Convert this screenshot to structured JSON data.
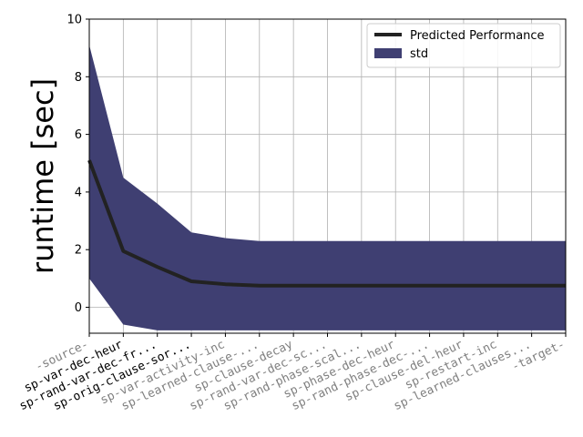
{
  "chart_data": {
    "type": "line",
    "title": "",
    "xlabel": "",
    "ylabel": "runtime [sec]",
    "ylim": [
      -0.9,
      10
    ],
    "yticks": [
      0,
      2,
      4,
      6,
      8,
      10
    ],
    "grid": true,
    "legend_placement": "top-right",
    "categories": [
      "-source-",
      "sp-var-dec-heur",
      "sp-rand-var-dec-fr...",
      "sp-orig-clause-sor...",
      "sp-var-activity-inc",
      "sp-learned-clause-...",
      "sp-clause-decay",
      "sp-rand-var-dec-sc...",
      "sp-rand-phase-scal...",
      "sp-phase-dec-heur",
      "sp-rand-phase-dec-...",
      "sp-clause-del-heur",
      "sp-restart-inc",
      "sp-learned-clauses...",
      "-target-"
    ],
    "tick_colors": [
      "#808080",
      "#000000",
      "#000000",
      "#000000",
      "#808080",
      "#808080",
      "#808080",
      "#808080",
      "#808080",
      "#808080",
      "#808080",
      "#808080",
      "#808080",
      "#808080",
      "#808080"
    ],
    "series": [
      {
        "name": "Predicted Performance",
        "kind": "line",
        "color": "#222222",
        "values": [
          5.1,
          1.95,
          1.4,
          0.9,
          0.8,
          0.75,
          0.75,
          0.75,
          0.75,
          0.75,
          0.75,
          0.75,
          0.75,
          0.75,
          0.75
        ]
      },
      {
        "name": "std",
        "kind": "band",
        "color": "#3f3f72",
        "upper": [
          9.1,
          4.5,
          3.6,
          2.6,
          2.4,
          2.3,
          2.3,
          2.3,
          2.3,
          2.3,
          2.3,
          2.3,
          2.3,
          2.3,
          2.3
        ],
        "lower": [
          1.0,
          -0.6,
          -0.8,
          -0.8,
          -0.8,
          -0.8,
          -0.8,
          -0.8,
          -0.8,
          -0.8,
          -0.8,
          -0.8,
          -0.8,
          -0.8,
          -0.8
        ]
      }
    ]
  }
}
